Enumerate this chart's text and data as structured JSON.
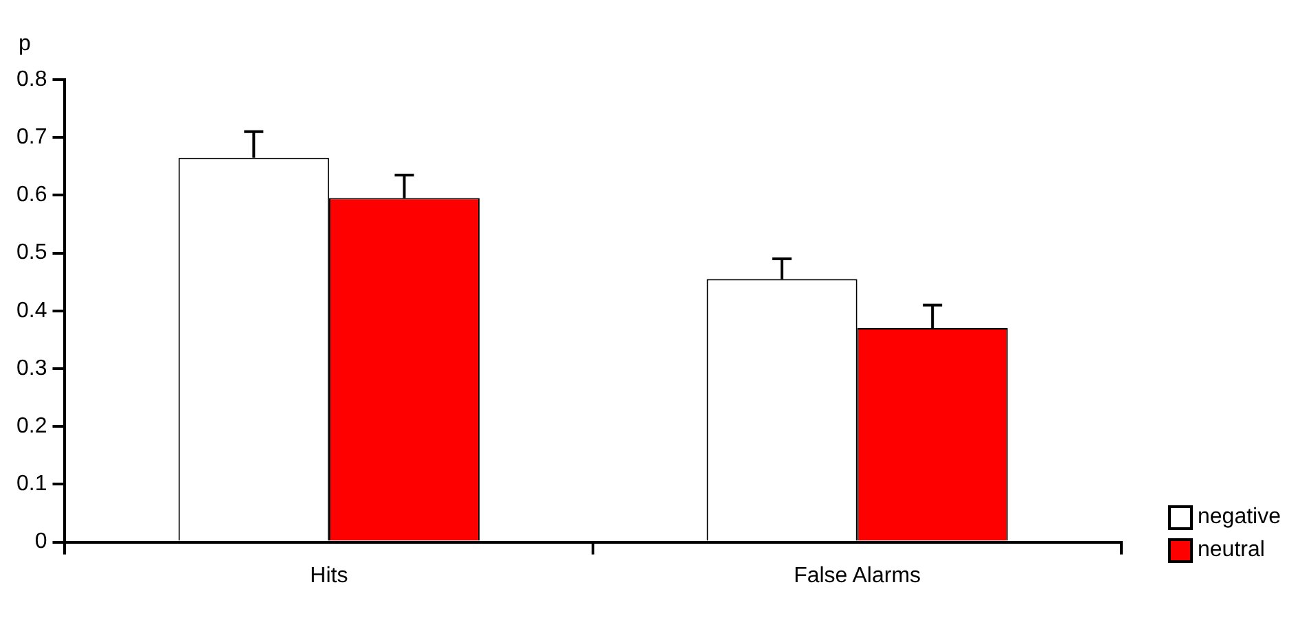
{
  "chart_data": {
    "type": "bar",
    "ylabel": "p",
    "categories": [
      "Hits",
      "False Alarms"
    ],
    "series": [
      {
        "name": "negative",
        "color": "#ffffff",
        "values": [
          0.665,
          0.455
        ],
        "errors": [
          [
            0.665,
            0.71
          ],
          [
            0.455,
            0.49
          ]
        ]
      },
      {
        "name": "neutral",
        "color": "#ff0000",
        "values": [
          0.595,
          0.37
        ],
        "errors": [
          [
            0.595,
            0.635
          ],
          [
            0.37,
            0.41
          ]
        ]
      }
    ],
    "ylim": [
      0,
      0.8
    ],
    "yticks": [
      0,
      0.1,
      0.2,
      0.3,
      0.4,
      0.5,
      0.6,
      0.7,
      0.8
    ],
    "grid": false,
    "legend": "bottom right"
  }
}
